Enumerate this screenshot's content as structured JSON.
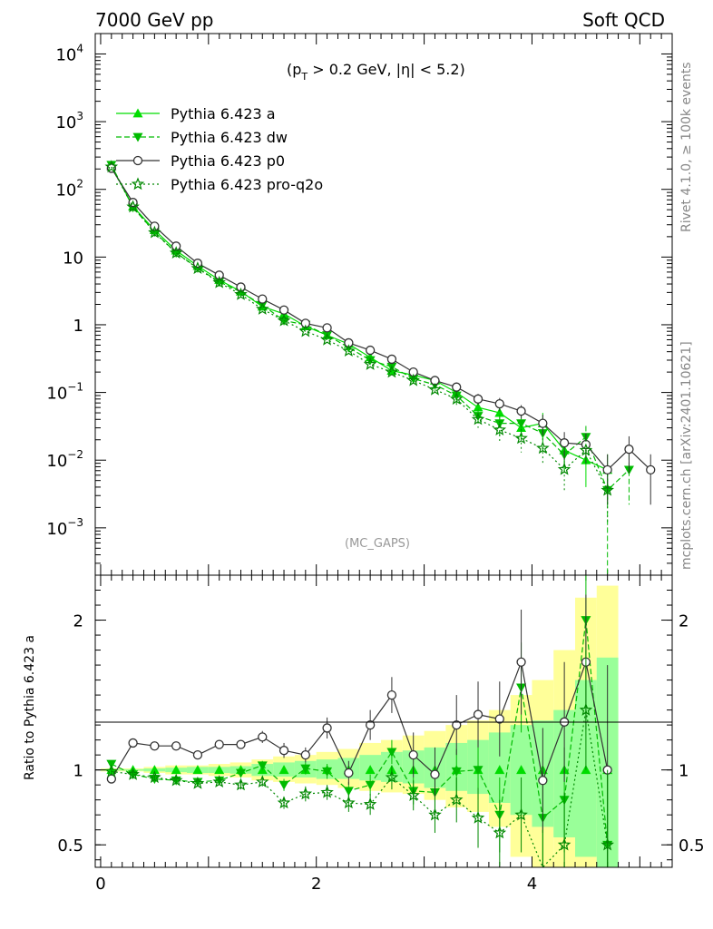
{
  "header": {
    "left": "7000 GeV pp",
    "right": "Soft QCD",
    "side_rivet": "Rivet 4.1.0, ≥ 100k events",
    "side_mcplots": "mcplots.cern.ch [arXiv:2401.10621]",
    "cut_prefix": "(p",
    "cut_sub": "T",
    "cut_suffix": " > 0.2 GeV, |η| < 5.2)",
    "watermark": "(MC_GAPS)"
  },
  "colors": {
    "a": "#00dd00",
    "dw": "#00bb00",
    "p0": "#333333",
    "proq2o": "#008800",
    "band_yellow": "#ffff99",
    "band_green": "#99ff99"
  },
  "chart_data": [
    {
      "type": "line",
      "scale": "log",
      "xlim": [
        -0.05,
        5.3
      ],
      "ylim": [
        0.0002,
        20000
      ],
      "yticks": [
        {
          "v": 10000,
          "base": "10",
          "exp": "4"
        },
        {
          "v": 1000,
          "base": "10",
          "exp": "3"
        },
        {
          "v": 100,
          "base": "10",
          "exp": "2"
        },
        {
          "v": 10,
          "base": "10",
          "exp": ""
        },
        {
          "v": 1,
          "base": "1",
          "exp": ""
        },
        {
          "v": 0.1,
          "base": "10",
          "exp": "−1"
        },
        {
          "v": 0.01,
          "base": "10",
          "exp": "−2"
        },
        {
          "v": 0.001,
          "base": "10",
          "exp": "−3"
        }
      ],
      "x": [
        0.1,
        0.3,
        0.5,
        0.7,
        0.9,
        1.1,
        1.3,
        1.5,
        1.7,
        1.9,
        2.1,
        2.3,
        2.5,
        2.7,
        2.9,
        3.1,
        3.3,
        3.5,
        3.7,
        3.9,
        4.1,
        4.3,
        4.5,
        4.7,
        4.9,
        5.1
      ],
      "series": [
        {
          "key": "a",
          "name": "Pythia 6.423 a",
          "marker": "triangle-up",
          "dash": "",
          "values": [
            220,
            56,
            25,
            12.5,
            7.4,
            4.6,
            3.1,
            1.85,
            1.45,
            0.95,
            0.7,
            0.52,
            0.33,
            0.21,
            0.18,
            0.15,
            0.1,
            0.06,
            0.05,
            0.03,
            0.035,
            0.014,
            0.01,
            0.0072,
            null,
            null
          ],
          "err": [
            0,
            0,
            0,
            0,
            0,
            0,
            0,
            0,
            0,
            0,
            0,
            0,
            0,
            0,
            0.02,
            0.02,
            0.02,
            0.015,
            0.015,
            0.01,
            0.015,
            0.007,
            0.006,
            0.005,
            null,
            null
          ]
        },
        {
          "key": "dw",
          "name": "Pythia 6.423 dw",
          "marker": "triangle-down",
          "dash": "6,3",
          "values": [
            230,
            54,
            23.5,
            11.5,
            6.9,
            4.3,
            3.05,
            1.95,
            1.15,
            1.0,
            0.7,
            0.46,
            0.3,
            0.24,
            0.16,
            0.13,
            0.09,
            0.045,
            0.035,
            0.035,
            0.025,
            0.012,
            0.022,
            0.0036,
            0.0072,
            null
          ],
          "err": [
            0,
            0,
            0,
            0,
            0,
            0,
            0,
            0,
            0,
            0,
            0,
            0,
            0,
            0,
            0.02,
            0.02,
            0.02,
            0.012,
            0.012,
            0.012,
            0.012,
            0.006,
            0.01,
            0.0035,
            0.005,
            null
          ]
        },
        {
          "key": "p0",
          "name": "Pythia 6.423 p0",
          "marker": "circle",
          "dash": "",
          "values": [
            205,
            64,
            28.5,
            14.5,
            8.1,
            5.4,
            3.6,
            2.4,
            1.65,
            1.05,
            0.9,
            0.54,
            0.42,
            0.31,
            0.2,
            0.15,
            0.12,
            0.08,
            0.068,
            0.053,
            0.035,
            0.018,
            0.017,
            0.0072,
            0.0145,
            0.0072
          ],
          "err": [
            0,
            0,
            0,
            0,
            0,
            0,
            0,
            0,
            0,
            0,
            0,
            0,
            0,
            0,
            0.02,
            0.02,
            0.02,
            0.015,
            0.015,
            0.012,
            0.012,
            0.008,
            0.008,
            0.005,
            0.008,
            0.005
          ]
        },
        {
          "key": "proq2o",
          "name": "Pythia 6.423 pro-q2o",
          "marker": "star",
          "dash": "2,3",
          "values": [
            215,
            55,
            23,
            11.5,
            6.8,
            4.2,
            2.8,
            1.7,
            1.15,
            0.8,
            0.6,
            0.41,
            0.26,
            0.2,
            0.15,
            0.11,
            0.08,
            0.04,
            0.028,
            0.021,
            0.015,
            0.0073,
            0.014,
            0.0036,
            null,
            null
          ],
          "err": [
            0,
            0,
            0,
            0,
            0,
            0,
            0,
            0,
            0,
            0,
            0,
            0,
            0,
            0,
            0.015,
            0.015,
            0.015,
            0.01,
            0.01,
            0.008,
            0.006,
            0.004,
            0.006,
            0.0025,
            null,
            null
          ]
        }
      ]
    },
    {
      "type": "line",
      "title": "ratio",
      "ylabel": "Ratio to Pythia 6.423 a",
      "xlim": [
        -0.05,
        5.3
      ],
      "ylim": [
        0.35,
        2.3
      ],
      "yticks": [
        0.5,
        1,
        2
      ],
      "ytick_labels": [
        "0.5",
        "1",
        "2"
      ],
      "xticks": [
        0,
        2,
        4
      ],
      "xtick_labels": [
        "0",
        "2",
        "4"
      ],
      "bands": {
        "edges": [
          0.0,
          0.2,
          0.4,
          0.6,
          0.8,
          1.0,
          1.2,
          1.4,
          1.6,
          1.8,
          2.0,
          2.2,
          2.4,
          2.6,
          2.8,
          3.0,
          3.2,
          3.4,
          3.6,
          3.8,
          4.0,
          4.2,
          4.4,
          4.6,
          4.8
        ],
        "yellow_lo": [
          0.99,
          0.99,
          0.98,
          0.97,
          0.97,
          0.96,
          0.95,
          0.93,
          0.92,
          0.91,
          0.9,
          0.88,
          0.86,
          0.85,
          0.84,
          0.8,
          0.75,
          0.72,
          0.62,
          0.42,
          0.35,
          0.35,
          0.35,
          0.35
        ],
        "yellow_hi": [
          1.01,
          1.01,
          1.02,
          1.03,
          1.03,
          1.04,
          1.05,
          1.07,
          1.09,
          1.1,
          1.12,
          1.14,
          1.18,
          1.2,
          1.23,
          1.26,
          1.3,
          1.33,
          1.4,
          1.5,
          1.6,
          1.8,
          2.15,
          2.23
        ],
        "green_lo": [
          0.995,
          0.995,
          0.99,
          0.985,
          0.98,
          0.98,
          0.975,
          0.96,
          0.955,
          0.95,
          0.94,
          0.94,
          0.93,
          0.92,
          0.91,
          0.88,
          0.86,
          0.84,
          0.78,
          0.7,
          0.62,
          0.55,
          0.42,
          0.35
        ],
        "green_hi": [
          1.005,
          1.005,
          1.01,
          1.015,
          1.02,
          1.02,
          1.025,
          1.04,
          1.05,
          1.06,
          1.07,
          1.08,
          1.1,
          1.12,
          1.13,
          1.15,
          1.18,
          1.2,
          1.25,
          1.3,
          1.33,
          1.4,
          1.6,
          1.75
        ]
      },
      "x": [
        0.1,
        0.3,
        0.5,
        0.7,
        0.9,
        1.1,
        1.3,
        1.5,
        1.7,
        1.9,
        2.1,
        2.3,
        2.5,
        2.7,
        2.9,
        3.1,
        3.3,
        3.5,
        3.7,
        3.9,
        4.1,
        4.3,
        4.5,
        4.7
      ],
      "series": [
        {
          "key": "dw",
          "values": [
            1.04,
            0.97,
            0.94,
            0.93,
            0.92,
            0.93,
            0.98,
            1.03,
            0.9,
            1.01,
            0.99,
            0.86,
            0.9,
            1.12,
            0.86,
            0.85,
            0.99,
            1.0,
            0.7,
            1.55,
            0.68,
            0.8,
            2.0,
            0.5
          ],
          "err": [
            0.02,
            0.02,
            0.02,
            0.02,
            0.02,
            0.02,
            0.03,
            0.03,
            0.04,
            0.04,
            0.05,
            0.06,
            0.07,
            0.08,
            0.09,
            0.12,
            0.15,
            0.2,
            0.25,
            0.3,
            0.3,
            0.35,
            0.4,
            0.5
          ]
        },
        {
          "key": "p0",
          "values": [
            0.94,
            1.18,
            1.16,
            1.16,
            1.1,
            1.17,
            1.17,
            1.22,
            1.13,
            1.1,
            1.28,
            0.98,
            1.3,
            1.5,
            1.1,
            0.97,
            1.3,
            1.37,
            1.34,
            1.72,
            0.93,
            1.32,
            1.72,
            1.0
          ],
          "err": [
            0,
            0.02,
            0.02,
            0.02,
            0.02,
            0.03,
            0.03,
            0.04,
            0.05,
            0.05,
            0.07,
            0.08,
            0.1,
            0.12,
            0.15,
            0.18,
            0.2,
            0.22,
            0.25,
            0.35,
            0.35,
            0.4,
            0.45,
            0.7
          ]
        },
        {
          "key": "proq2o",
          "values": [
            0.99,
            0.97,
            0.95,
            0.93,
            0.91,
            0.92,
            0.9,
            0.92,
            0.78,
            0.84,
            0.85,
            0.78,
            0.77,
            0.95,
            0.83,
            0.7,
            0.8,
            0.68,
            0.58,
            0.7,
            0.3,
            0.5,
            1.4,
            0.5
          ],
          "err": [
            0.02,
            0.02,
            0.02,
            0.02,
            0.02,
            0.02,
            0.03,
            0.03,
            0.04,
            0.05,
            0.05,
            0.06,
            0.07,
            0.08,
            0.1,
            0.12,
            0.15,
            0.2,
            0.22,
            0.25,
            0.3,
            0.35,
            0.4,
            0.5
          ]
        }
      ]
    }
  ]
}
